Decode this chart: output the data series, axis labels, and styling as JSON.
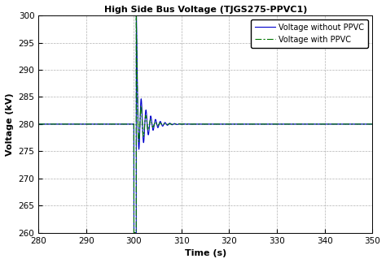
{
  "title": "High Side Bus Voltage (TJGS275-PPVC1)",
  "xlabel": "Time (s)",
  "ylabel": "Voltage (kV)",
  "xlim": [
    280,
    350
  ],
  "ylim": [
    260,
    300
  ],
  "yticks": [
    260,
    265,
    270,
    275,
    280,
    285,
    290,
    295,
    300
  ],
  "xticks": [
    280,
    290,
    300,
    310,
    320,
    330,
    340,
    350
  ],
  "steady_voltage": 280.0,
  "fault_start": 300.0,
  "fault_end": 300.5,
  "spike_peak": 295.0,
  "drop_min": 260.0,
  "osc_freq": 1.0,
  "osc_amp1": 8.0,
  "osc_damp1": 0.55,
  "osc_amp2": 6.5,
  "osc_damp2": 0.7,
  "line1_color": "#0000cc",
  "line2_color": "#007700",
  "line1_label": "Voltage without PPVC",
  "line2_label": "Voltage with PPVC",
  "background_color": "#ffffff",
  "grid_color": "#aaaaaa"
}
